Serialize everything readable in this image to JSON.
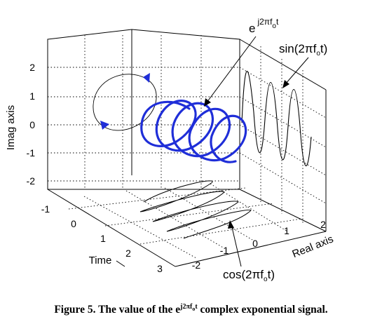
{
  "figure": {
    "axis_labels": {
      "imag": "Imag axis",
      "time": "Time",
      "real": "Real axis"
    },
    "imag_ticks": [
      "2",
      "1",
      "0",
      "-1",
      "-2"
    ],
    "time_ticks": [
      "-1",
      "0",
      "1",
      "2",
      "3"
    ],
    "real_ticks": [
      "-2",
      "-1",
      "0",
      "1",
      "2"
    ],
    "annotations": {
      "exp_base": "e",
      "exp_power": "j2πf",
      "exp_sub": "o",
      "exp_t": "t",
      "sin_prefix": "sin(2πf",
      "sin_sub": "o",
      "sin_suffix": "t)",
      "cos_prefix": "cos(2πf",
      "cos_sub": "o",
      "cos_suffix": "t)"
    },
    "colors": {
      "helix": "#1f2ed8",
      "rotation_arrow": "#1f2ed8",
      "projections": "#000000"
    }
  },
  "caption": {
    "label": "Figure 5.",
    "text_before": "The value of the e",
    "power": "j2πf",
    "power_sub": "o",
    "power_t": "t",
    "text_after": " complex exponential signal."
  }
}
